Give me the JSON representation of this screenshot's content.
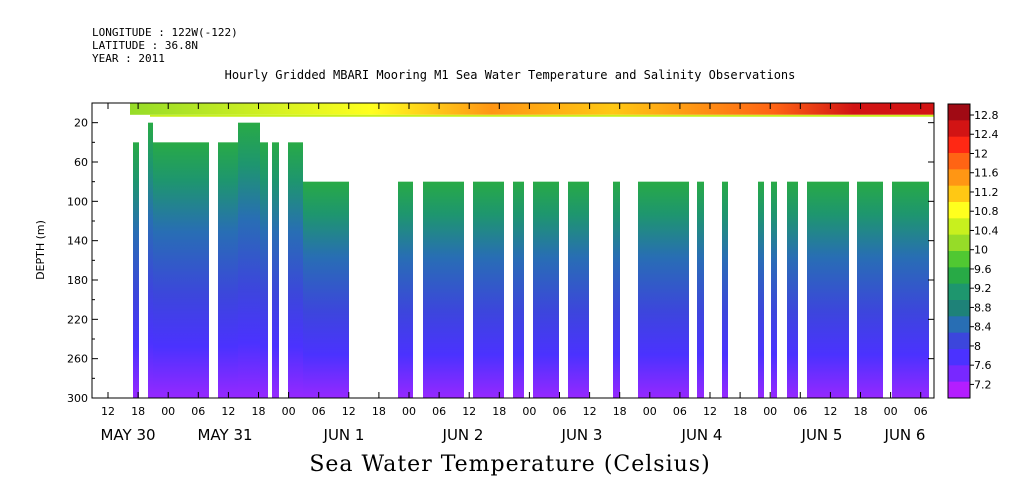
{
  "header": {
    "longitude": "LONGITUDE : 122W(-122)",
    "latitude": "LATITUDE : 36.8N",
    "year": "YEAR : 2011",
    "title": "Hourly Gridded MBARI Mooring M1 Sea Water Temperature and Salinity Observations"
  },
  "caption": "Sea Water Temperature (Celsius)",
  "chart_data": {
    "type": "heatmap",
    "title": "Hourly Gridded MBARI Mooring M1 Sea Water Temperature and Salinity Observations",
    "ylabel": "DEPTH (m)",
    "xlabel": "Sea Water Temperature (Celsius)",
    "ylim": [
      300,
      0
    ],
    "y_ticks": [
      20,
      60,
      100,
      140,
      180,
      220,
      260,
      300
    ],
    "x_hour_ticks": [
      "12",
      "18",
      "00",
      "06",
      "12",
      "18",
      "00",
      "06",
      "12",
      "18",
      "00",
      "06",
      "12",
      "18",
      "00",
      "06",
      "12",
      "18",
      "00",
      "06",
      "12",
      "18",
      "00",
      "06",
      "12",
      "18",
      "00",
      "06"
    ],
    "x_day_labels": [
      "MAY 30",
      "MAY 31",
      "JUN  1",
      "JUN  2",
      "JUN  3",
      "JUN  4",
      "JUN  5",
      "JUN  6"
    ],
    "colorbar": {
      "labels": [
        "12.8",
        "12.4",
        "12",
        "11.6",
        "11.2",
        "10.8",
        "10.4",
        "10",
        "9.6",
        "9.2",
        "8.8",
        "8.4",
        "8",
        "7.6",
        "7.2"
      ],
      "colors": [
        "#a00a14",
        "#d21414",
        "#ff2814",
        "#ff6414",
        "#ff9614",
        "#ffc814",
        "#ffff1e",
        "#c8f01e",
        "#96dc28",
        "#50c832",
        "#28aa46",
        "#1e966e",
        "#1e8278",
        "#286eb4",
        "#3c46dc",
        "#4b32ff",
        "#7828ff",
        "#b41eff"
      ]
    },
    "depth_profile_by_time": "surface ~10.5 °C (warming to ~12.8 by Jun 5), ~9 °C at 40-80 m, decreasing to ~7.3 °C at 300 m"
  }
}
